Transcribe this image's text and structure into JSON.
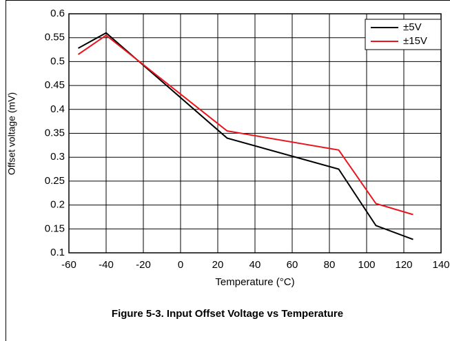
{
  "chart_data": {
    "type": "line",
    "caption": "Figure 5-3. Input Offset Voltage vs Temperature",
    "xlabel": "Temperature (°C)",
    "ylabel": "Offset voltage (mV)",
    "x": [
      -55,
      -40,
      25,
      85,
      105,
      125
    ],
    "series": [
      {
        "name": "±5V",
        "color": "#000000",
        "values": [
          0.528,
          0.56,
          0.34,
          0.275,
          0.157,
          0.128
        ]
      },
      {
        "name": "±15V",
        "color": "#e8161c",
        "values": [
          0.515,
          0.555,
          0.355,
          0.315,
          0.203,
          0.18
        ]
      }
    ],
    "xlim": [
      -60,
      140
    ],
    "xticks": [
      -60,
      -40,
      -20,
      0,
      20,
      40,
      60,
      80,
      100,
      120,
      140
    ],
    "ylim": [
      0.1,
      0.6
    ],
    "yticks": [
      0.1,
      0.15,
      0.2,
      0.25,
      0.3,
      0.35,
      0.4,
      0.45,
      0.5,
      0.55,
      0.6
    ],
    "grid": true,
    "legend": "upper right"
  }
}
